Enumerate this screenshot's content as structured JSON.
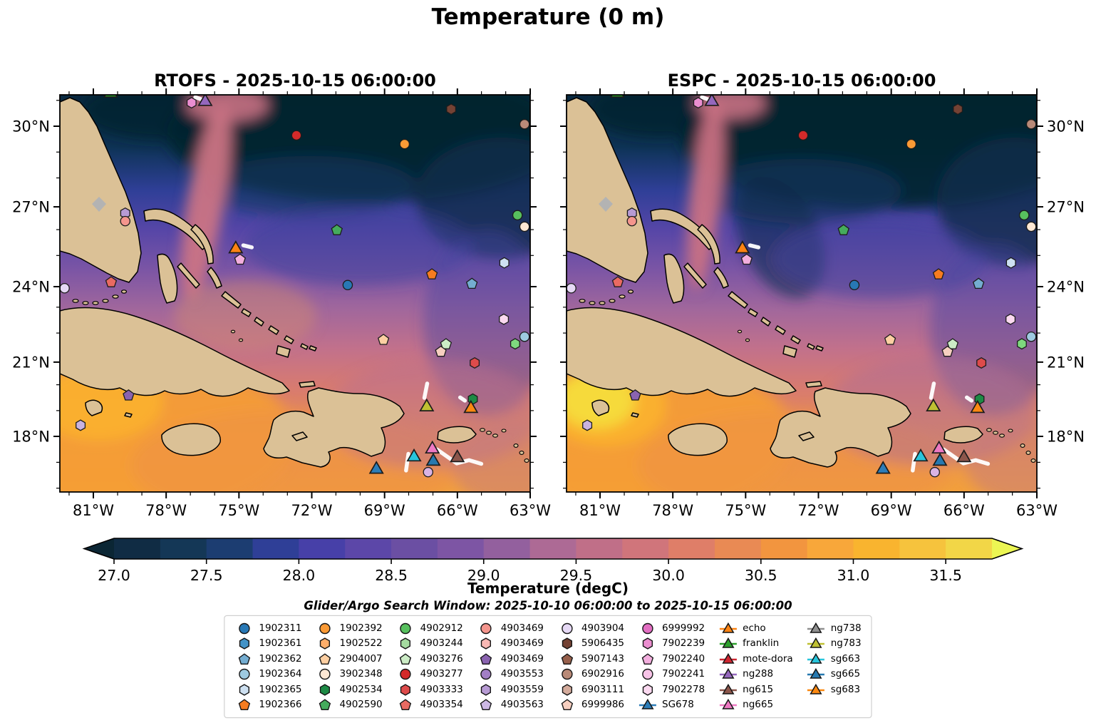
{
  "title": "Temperature (0 m)",
  "panels": [
    {
      "title": "RTOFS - 2025-10-15 06:00:00"
    },
    {
      "title": "ESPC - 2025-10-15 06:00:00"
    }
  ],
  "search_window": "Glider/Argo Search Window: 2025-10-10 06:00:00 to 2025-10-15 06:00:00",
  "axes": {
    "lon_tick_labels": [
      "81°W",
      "78°W",
      "75°W",
      "72°W",
      "69°W",
      "66°W",
      "63°W"
    ],
    "lat_tick_labels": [
      "30°N",
      "27°N",
      "24°N",
      "21°N",
      "18°N"
    ]
  },
  "colorbar": {
    "label": "Temperature (degC)",
    "tick_labels": [
      "27.0",
      "27.5",
      "28.0",
      "28.5",
      "29.0",
      "29.5",
      "30.0",
      "30.5",
      "31.0",
      "31.5"
    ],
    "range_min": 27.0,
    "range_max": 31.75,
    "step": 0.25,
    "under_color": "#0b2634",
    "over_color": "#ecf653",
    "segment_colors": [
      "#102c44",
      "#143756",
      "#1c3d71",
      "#2f3f97",
      "#4740a8",
      "#5c47a8",
      "#6b4fa3",
      "#7d55a4",
      "#93609e",
      "#ad6a95",
      "#c06f88",
      "#d0757b",
      "#df7e68",
      "#e98a54",
      "#f2953f",
      "#f8a73a",
      "#f9b42f",
      "#f6c33d",
      "#f2d647"
    ]
  },
  "legend": {
    "columns": [
      [
        {
          "label": "1902311",
          "shape": "circle",
          "color": "#2878b5",
          "type": "float"
        },
        {
          "label": "1902361",
          "shape": "hexagon",
          "color": "#4292c6",
          "type": "float"
        },
        {
          "label": "1902362",
          "shape": "pentagon",
          "color": "#74add1",
          "type": "float"
        },
        {
          "label": "1902364",
          "shape": "circle",
          "color": "#9ecae1",
          "type": "float"
        },
        {
          "label": "1902365",
          "shape": "hexagon",
          "color": "#cde0f1",
          "type": "float"
        },
        {
          "label": "1902366",
          "shape": "pentagon",
          "color": "#f67c1f",
          "type": "float"
        }
      ],
      [
        {
          "label": "1902392",
          "shape": "circle",
          "color": "#fb9a35",
          "type": "float"
        },
        {
          "label": "1902522",
          "shape": "hexagon",
          "color": "#fdae6b",
          "type": "float"
        },
        {
          "label": "2904007",
          "shape": "pentagon",
          "color": "#fdcfa2",
          "type": "float"
        },
        {
          "label": "3902348",
          "shape": "circle",
          "color": "#fee8d4",
          "type": "float"
        },
        {
          "label": "4902534",
          "shape": "hexagon",
          "color": "#1d8a45",
          "type": "float"
        },
        {
          "label": "4902590",
          "shape": "pentagon",
          "color": "#45ab5c",
          "type": "float"
        }
      ],
      [
        {
          "label": "4902912",
          "shape": "circle",
          "color": "#57c05e",
          "type": "float"
        },
        {
          "label": "4903244",
          "shape": "hexagon",
          "color": "#a5dba0",
          "type": "float"
        },
        {
          "label": "4903276",
          "shape": "pentagon",
          "color": "#ccecc6",
          "type": "float"
        },
        {
          "label": "4903277",
          "shape": "circle",
          "color": "#d42a2a",
          "type": "float"
        },
        {
          "label": "4903333",
          "shape": "hexagon",
          "color": "#de4b4b",
          "type": "float"
        },
        {
          "label": "4903354",
          "shape": "pentagon",
          "color": "#e96a62",
          "type": "float"
        }
      ],
      [
        {
          "label": "4903469",
          "shape": "circle",
          "color": "#f4958d",
          "type": "float"
        },
        {
          "label": "4903469",
          "shape": "hexagon",
          "color": "#f9b8b4",
          "type": "float"
        },
        {
          "label": "4903469",
          "shape": "pentagon",
          "color": "#8a63b0",
          "type": "float"
        },
        {
          "label": "4903553",
          "shape": "circle",
          "color": "#a27fc5",
          "type": "float"
        },
        {
          "label": "4903559",
          "shape": "hexagon",
          "color": "#b79bd4",
          "type": "float"
        },
        {
          "label": "4903563",
          "shape": "pentagon",
          "color": "#cdb8e4",
          "type": "float"
        }
      ],
      [
        {
          "label": "4903904",
          "shape": "circle",
          "color": "#e6d9f5",
          "type": "float"
        },
        {
          "label": "5906435",
          "shape": "hexagon",
          "color": "#744234",
          "type": "float"
        },
        {
          "label": "5907143",
          "shape": "pentagon",
          "color": "#97604c",
          "type": "float"
        },
        {
          "label": "6902916",
          "shape": "circle",
          "color": "#b98a78",
          "type": "float"
        },
        {
          "label": "6903111",
          "shape": "hexagon",
          "color": "#d4ab9c",
          "type": "float"
        },
        {
          "label": "6999986",
          "shape": "pentagon",
          "color": "#f7cfc0",
          "type": "float"
        }
      ],
      [
        {
          "label": "6999992",
          "shape": "circle",
          "color": "#e26ec2",
          "type": "float"
        },
        {
          "label": "7902239",
          "shape": "hexagon",
          "color": "#eb8ed0",
          "type": "float"
        },
        {
          "label": "7902240",
          "shape": "pentagon",
          "color": "#f3aede",
          "type": "float"
        },
        {
          "label": "7902241",
          "shape": "circle",
          "color": "#f7c3e7",
          "type": "float"
        },
        {
          "label": "7902278",
          "shape": "hexagon",
          "color": "#fbd9f0",
          "type": "float"
        },
        {
          "label": "SG678",
          "shape": "triangle",
          "color": "#2d7db8",
          "type": "glider"
        }
      ],
      [
        {
          "label": "echo",
          "shape": "triangle",
          "color": "#fd8312",
          "type": "glider"
        },
        {
          "label": "franklin",
          "shape": "triangle",
          "color": "#2ca02c",
          "type": "glider"
        },
        {
          "label": "mote-dora",
          "shape": "triangle",
          "color": "#cf2631",
          "type": "glider"
        },
        {
          "label": "ng288",
          "shape": "triangle",
          "color": "#9467bd",
          "type": "glider"
        },
        {
          "label": "ng615",
          "shape": "triangle",
          "color": "#8c564b",
          "type": "glider"
        },
        {
          "label": "ng665",
          "shape": "triangle",
          "color": "#ee79c3",
          "type": "glider"
        }
      ],
      [
        {
          "label": "ng738",
          "shape": "triangle",
          "color": "#909090",
          "type": "glider"
        },
        {
          "label": "ng783",
          "shape": "triangle",
          "color": "#bfc032",
          "type": "glider"
        },
        {
          "label": "sg663",
          "shape": "triangle",
          "color": "#28c5dc",
          "type": "glider"
        },
        {
          "label": "sg665",
          "shape": "triangle",
          "color": "#2779b0",
          "type": "glider"
        },
        {
          "label": "sg683",
          "shape": "triangle",
          "color": "#fb8810",
          "type": "glider"
        }
      ]
    ]
  },
  "chart_data": {
    "type": "map",
    "title": "Temperature (0 m)",
    "variable": "Temperature (degC)",
    "panels": [
      "RTOFS - 2025-10-15 06:00:00",
      "ESPC - 2025-10-15 06:00:00"
    ],
    "lon_ticks_deg_w": [
      81,
      78,
      75,
      72,
      69,
      66,
      63
    ],
    "lat_ticks_deg_n": [
      30,
      27,
      24,
      21,
      18
    ],
    "colorbar_ticks": [
      27.0,
      27.5,
      28.0,
      28.5,
      29.0,
      29.5,
      30.0,
      30.5,
      31.0,
      31.5
    ],
    "colorbar_step_degC": 0.25,
    "search_window": "2025-10-10 06:00:00 to 2025-10-15 06:00:00",
    "observations": [
      {
        "id": "7902239",
        "shape": "hexagon",
        "color": "#eb8ed0",
        "x": 0.28,
        "y": 0.02
      },
      {
        "id": "ng288",
        "shape": "triangle",
        "color": "#9467bd",
        "x": 0.309,
        "y": 0.015
      },
      {
        "id": "franklin",
        "shape": "triangle",
        "color": "#2ca02c",
        "x": 0.108,
        "y": -0.006
      },
      {
        "id": "4903277",
        "shape": "circle",
        "color": "#d42a2a",
        "x": 0.503,
        "y": 0.102
      },
      {
        "id": "1902392",
        "shape": "circle",
        "color": "#fb9a35",
        "x": 0.733,
        "y": 0.124
      },
      {
        "id": "5906435",
        "shape": "hexagon",
        "color": "#744234",
        "x": 0.832,
        "y": 0.036
      },
      {
        "id": "6902916",
        "shape": "circle",
        "color": "#b98a78",
        "x": 0.988,
        "y": 0.074
      },
      {
        "id": "4903559",
        "shape": "hexagon",
        "color": "#b79bd4",
        "x": 0.139,
        "y": 0.298
      },
      {
        "id": "4903469",
        "shape": "circle",
        "color": "#f4958d",
        "x": 0.139,
        "y": 0.318
      },
      {
        "id": "echo",
        "shape": "triangle",
        "color": "#fd8312",
        "x": 0.374,
        "y": 0.386
      },
      {
        "id": "7902240",
        "shape": "pentagon",
        "color": "#f3aede",
        "x": 0.383,
        "y": 0.415
      },
      {
        "id": "4903354",
        "shape": "pentagon",
        "color": "#e96a62",
        "x": 0.109,
        "y": 0.472
      },
      {
        "id": "4903904",
        "shape": "circle",
        "color": "#e6d9f5",
        "x": 0.01,
        "y": 0.487
      },
      {
        "id": "4902912",
        "shape": "circle",
        "color": "#57c05e",
        "x": 0.973,
        "y": 0.303
      },
      {
        "id": "3902348",
        "shape": "circle",
        "color": "#fee8d4",
        "x": 0.988,
        "y": 0.332
      },
      {
        "id": "4902590",
        "shape": "pentagon",
        "color": "#45ab5c",
        "x": 0.589,
        "y": 0.341
      },
      {
        "id": "1902365",
        "shape": "hexagon",
        "color": "#cde0f1",
        "x": 0.945,
        "y": 0.423
      },
      {
        "id": "1902366",
        "shape": "pentagon",
        "color": "#f67c1f",
        "x": 0.791,
        "y": 0.452
      },
      {
        "id": "1902311",
        "shape": "circle",
        "color": "#2878b5",
        "x": 0.612,
        "y": 0.479
      },
      {
        "id": "1902362",
        "shape": "pentagon",
        "color": "#74add1",
        "x": 0.876,
        "y": 0.476
      },
      {
        "id": "7902278",
        "shape": "hexagon",
        "color": "#fbd9f0",
        "x": 0.944,
        "y": 0.565
      },
      {
        "id": "1902364",
        "shape": "circle",
        "color": "#9ecae1",
        "x": 0.988,
        "y": 0.609
      },
      {
        "id": "4903244",
        "shape": "hexagon",
        "color": "#7ed87e",
        "x": 0.968,
        "y": 0.627
      },
      {
        "id": "2904007",
        "shape": "pentagon",
        "color": "#fdcfa2",
        "x": 0.688,
        "y": 0.617
      },
      {
        "id": "4903276",
        "shape": "pentagon",
        "color": "#ccecc6",
        "x": 0.821,
        "y": 0.628
      },
      {
        "id": "6999986",
        "shape": "pentagon",
        "color": "#f7cfc0",
        "x": 0.81,
        "y": 0.647
      },
      {
        "id": "4903333",
        "shape": "hexagon",
        "color": "#de4b4b",
        "x": 0.882,
        "y": 0.675
      },
      {
        "id": "4903469",
        "shape": "pentagon",
        "color": "#8a63b0",
        "x": 0.146,
        "y": 0.757
      },
      {
        "id": "4903563",
        "shape": "hexagon",
        "color": "#c9b2e0",
        "x": 0.044,
        "y": 0.832
      },
      {
        "id": "ng783",
        "shape": "triangle",
        "color": "#bfc032",
        "x": 0.78,
        "y": 0.784
      },
      {
        "id": "4902534",
        "shape": "hexagon",
        "color": "#1d8a45",
        "x": 0.878,
        "y": 0.766
      },
      {
        "id": "sg683",
        "shape": "triangle",
        "color": "#fb8810",
        "x": 0.874,
        "y": 0.788
      },
      {
        "id": "ng665",
        "shape": "triangle",
        "color": "#ee79c3",
        "x": 0.792,
        "y": 0.89
      },
      {
        "id": "sg663",
        "shape": "triangle",
        "color": "#28c5dc",
        "x": 0.753,
        "y": 0.91
      },
      {
        "id": "sg665",
        "shape": "triangle",
        "color": "#2779b0",
        "x": 0.794,
        "y": 0.921
      },
      {
        "id": "ng615",
        "shape": "triangle",
        "color": "#8c564b",
        "x": 0.845,
        "y": 0.912
      },
      {
        "id": "SG678",
        "shape": "triangle",
        "color": "#2d7db8",
        "x": 0.673,
        "y": 0.941
      },
      {
        "id": "4903553",
        "shape": "circle",
        "color": "#d9b3e3",
        "x": 0.783,
        "y": 0.95
      }
    ],
    "glider_tracks": [
      {
        "points": [
          [
            0.288,
            0.006
          ],
          [
            0.3,
            0.011
          ]
        ]
      },
      {
        "points": [
          [
            0.39,
            0.379
          ],
          [
            0.408,
            0.384
          ]
        ]
      },
      {
        "points": [
          [
            0.781,
            0.727
          ],
          [
            0.775,
            0.763
          ]
        ]
      },
      {
        "points": [
          [
            0.851,
            0.762
          ],
          [
            0.861,
            0.77
          ]
        ]
      },
      {
        "points": [
          [
            0.741,
            0.904
          ],
          [
            0.736,
            0.946
          ]
        ]
      },
      {
        "points": [
          [
            0.802,
            0.893
          ],
          [
            0.82,
            0.908
          ],
          [
            0.844,
            0.928
          ],
          [
            0.87,
            0.92
          ],
          [
            0.896,
            0.929
          ]
        ]
      }
    ]
  }
}
